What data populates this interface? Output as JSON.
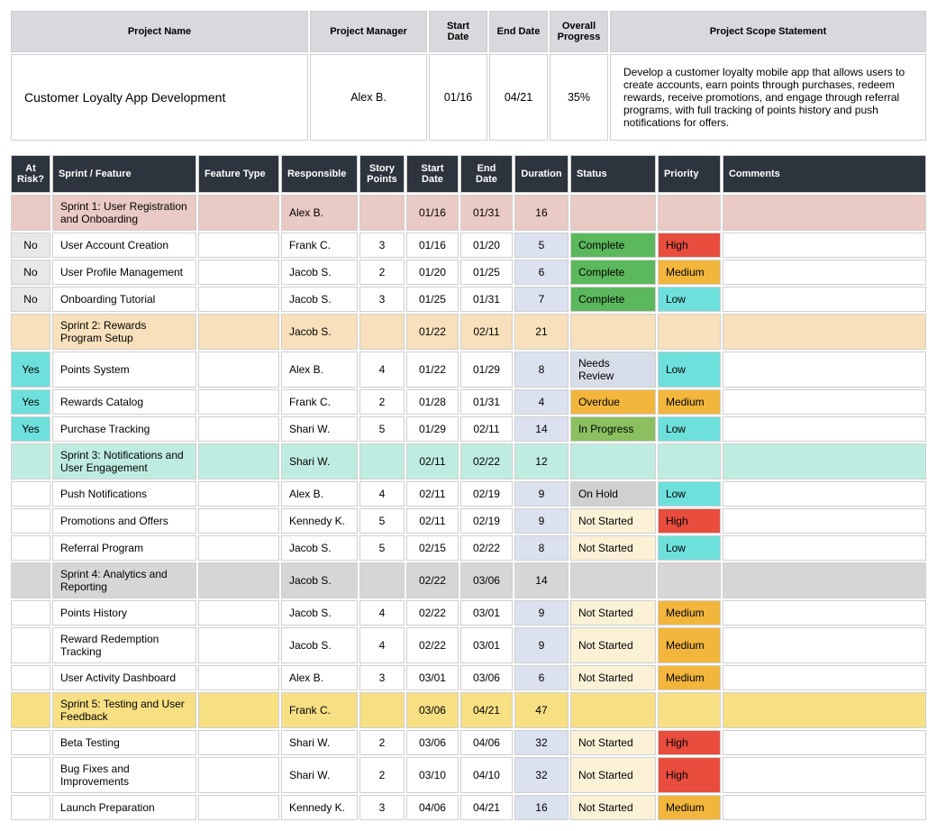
{
  "summary": {
    "headers": {
      "project_name": "Project Name",
      "project_manager": "Project Manager",
      "start_date": "Start Date",
      "end_date": "End Date",
      "overall_progress": "Overall Progress",
      "scope": "Project Scope Statement"
    },
    "values": {
      "project_name": "Customer Loyalty App Development",
      "project_manager": "Alex B.",
      "start_date": "01/16",
      "end_date": "04/21",
      "overall_progress": "35%",
      "scope": "Develop a customer loyalty mobile app that allows users to create accounts, earn points through purchases, redeem rewards, receive promotions, and engage through referral programs, with full tracking of points history and push notifications for offers."
    }
  },
  "backlog": {
    "headers": {
      "risk": "At Risk?",
      "feature": "Sprint / Feature",
      "type": "Feature Type",
      "responsible": "Responsible",
      "points": "Story Points",
      "start": "Start Date",
      "end": "End Date",
      "duration": "Duration",
      "status": "Status",
      "priority": "Priority",
      "comments": "Comments"
    },
    "rows": [
      {
        "sprint": true,
        "risk": "",
        "feature": "Sprint 1: User Registration and Onboarding",
        "type": "",
        "responsible": "Alex B.",
        "points": "",
        "start": "01/16",
        "end": "01/31",
        "duration": "16",
        "status": "",
        "priority": "",
        "comments": "",
        "row_bg": "#eacac4"
      },
      {
        "risk": "No",
        "risk_bg": "#e8e8e8",
        "feature": "User Account Creation",
        "type": "",
        "responsible": "Frank C.",
        "points": "3",
        "start": "01/16",
        "end": "01/20",
        "duration": "5",
        "dur_bg": "#dbe1ee",
        "status": "Complete",
        "status_bg": "#5cb85c",
        "priority": "High",
        "prio_bg": "#e84d3d",
        "comments": ""
      },
      {
        "risk": "No",
        "risk_bg": "#e8e8e8",
        "feature": "User Profile Management",
        "type": "",
        "responsible": "Jacob S.",
        "points": "2",
        "start": "01/20",
        "end": "01/25",
        "duration": "6",
        "dur_bg": "#dbe1ee",
        "status": "Complete",
        "status_bg": "#5cb85c",
        "priority": "Medium",
        "prio_bg": "#f2b63c",
        "comments": ""
      },
      {
        "risk": "No",
        "risk_bg": "#e8e8e8",
        "feature": "Onboarding Tutorial",
        "type": "",
        "responsible": "Jacob S.",
        "points": "3",
        "start": "01/25",
        "end": "01/31",
        "duration": "7",
        "dur_bg": "#dbe1ee",
        "status": "Complete",
        "status_bg": "#5cb85c",
        "priority": "Low",
        "prio_bg": "#6ee0db",
        "comments": ""
      },
      {
        "sprint": true,
        "risk": "",
        "feature": "Sprint 2: Rewards Program Setup",
        "type": "",
        "responsible": "Jacob S.",
        "points": "",
        "start": "01/22",
        "end": "02/11",
        "duration": "21",
        "status": "",
        "priority": "",
        "comments": "",
        "row_bg": "#f7e0bb"
      },
      {
        "risk": "Yes",
        "risk_bg": "#6ee0db",
        "feature": "Points System",
        "type": "",
        "responsible": "Alex B.",
        "points": "4",
        "start": "01/22",
        "end": "01/29",
        "duration": "8",
        "dur_bg": "#dbe1ee",
        "status": "Needs Review",
        "status_bg": "#d6dde8",
        "priority": "Low",
        "prio_bg": "#6ee0db",
        "comments": ""
      },
      {
        "risk": "Yes",
        "risk_bg": "#6ee0db",
        "feature": "Rewards Catalog",
        "type": "",
        "responsible": "Frank C.",
        "points": "2",
        "start": "01/28",
        "end": "01/31",
        "duration": "4",
        "dur_bg": "#dbe1ee",
        "status": "Overdue",
        "status_bg": "#f2b63c",
        "priority": "Medium",
        "prio_bg": "#f2b63c",
        "comments": ""
      },
      {
        "risk": "Yes",
        "risk_bg": "#6ee0db",
        "feature": "Purchase Tracking",
        "type": "",
        "responsible": "Shari W.",
        "points": "5",
        "start": "01/29",
        "end": "02/11",
        "duration": "14",
        "dur_bg": "#dbe1ee",
        "status": "In Progress",
        "status_bg": "#8ac060",
        "priority": "Low",
        "prio_bg": "#6ee0db",
        "comments": ""
      },
      {
        "sprint": true,
        "risk": "",
        "feature": "Sprint 3: Notifications and User Engagement",
        "type": "",
        "responsible": "Shari W.",
        "points": "",
        "start": "02/11",
        "end": "02/22",
        "duration": "12",
        "status": "",
        "priority": "",
        "comments": "",
        "row_bg": "#bfece0"
      },
      {
        "risk": "",
        "feature": "Push Notifications",
        "type": "",
        "responsible": "Alex B.",
        "points": "4",
        "start": "02/11",
        "end": "02/19",
        "duration": "9",
        "dur_bg": "#dbe1ee",
        "status": "On Hold",
        "status_bg": "#d0d0d0",
        "priority": "Low",
        "prio_bg": "#6ee0db",
        "comments": ""
      },
      {
        "risk": "",
        "feature": "Promotions and Offers",
        "type": "",
        "responsible": "Kennedy K.",
        "points": "5",
        "start": "02/11",
        "end": "02/19",
        "duration": "9",
        "dur_bg": "#dbe1ee",
        "status": "Not Started",
        "status_bg": "#faf1d6",
        "priority": "High",
        "prio_bg": "#e84d3d",
        "comments": ""
      },
      {
        "risk": "",
        "feature": "Referral Program",
        "type": "",
        "responsible": "Jacob S.",
        "points": "5",
        "start": "02/15",
        "end": "02/22",
        "duration": "8",
        "dur_bg": "#dbe1ee",
        "status": "Not Started",
        "status_bg": "#faf1d6",
        "priority": "Low",
        "prio_bg": "#6ee0db",
        "comments": ""
      },
      {
        "sprint": true,
        "risk": "",
        "feature": "Sprint 4: Analytics and Reporting",
        "type": "",
        "responsible": "Jacob S.",
        "points": "",
        "start": "02/22",
        "end": "03/06",
        "duration": "14",
        "status": "",
        "priority": "",
        "comments": "",
        "row_bg": "#d6d6d6"
      },
      {
        "risk": "",
        "feature": "Points History",
        "type": "",
        "responsible": "Jacob S.",
        "points": "4",
        "start": "02/22",
        "end": "03/01",
        "duration": "9",
        "dur_bg": "#dbe1ee",
        "status": "Not Started",
        "status_bg": "#faf1d6",
        "priority": "Medium",
        "prio_bg": "#f2b63c",
        "comments": ""
      },
      {
        "risk": "",
        "feature": "Reward Redemption Tracking",
        "type": "",
        "responsible": "Jacob S.",
        "points": "4",
        "start": "02/22",
        "end": "03/01",
        "duration": "9",
        "dur_bg": "#dbe1ee",
        "status": "Not Started",
        "status_bg": "#faf1d6",
        "priority": "Medium",
        "prio_bg": "#f2b63c",
        "comments": ""
      },
      {
        "risk": "",
        "feature": "User Activity Dashboard",
        "type": "",
        "responsible": "Alex B.",
        "points": "3",
        "start": "03/01",
        "end": "03/06",
        "duration": "6",
        "dur_bg": "#dbe1ee",
        "status": "Not Started",
        "status_bg": "#faf1d6",
        "priority": "Medium",
        "prio_bg": "#f2b63c",
        "comments": ""
      },
      {
        "sprint": true,
        "risk": "",
        "feature": "Sprint 5: Testing and User Feedback",
        "type": "",
        "responsible": "Frank C.",
        "points": "",
        "start": "03/06",
        "end": "04/21",
        "duration": "47",
        "status": "",
        "priority": "",
        "comments": "",
        "row_bg": "#f7df84"
      },
      {
        "risk": "",
        "feature": "Beta Testing",
        "type": "",
        "responsible": "Shari W.",
        "points": "2",
        "start": "03/06",
        "end": "04/06",
        "duration": "32",
        "dur_bg": "#dbe1ee",
        "status": "Not Started",
        "status_bg": "#faf1d6",
        "priority": "High",
        "prio_bg": "#e84d3d",
        "comments": ""
      },
      {
        "risk": "",
        "feature": "Bug Fixes and Improvements",
        "type": "",
        "responsible": "Shari W.",
        "points": "2",
        "start": "03/10",
        "end": "04/10",
        "duration": "32",
        "dur_bg": "#dbe1ee",
        "status": "Not Started",
        "status_bg": "#faf1d6",
        "priority": "High",
        "prio_bg": "#e84d3d",
        "comments": ""
      },
      {
        "risk": "",
        "feature": "Launch Preparation",
        "type": "",
        "responsible": "Kennedy K.",
        "points": "3",
        "start": "04/06",
        "end": "04/21",
        "duration": "16",
        "dur_bg": "#dbe1ee",
        "status": "Not Started",
        "status_bg": "#faf1d6",
        "priority": "Medium",
        "prio_bg": "#f2b63c",
        "comments": ""
      }
    ]
  }
}
